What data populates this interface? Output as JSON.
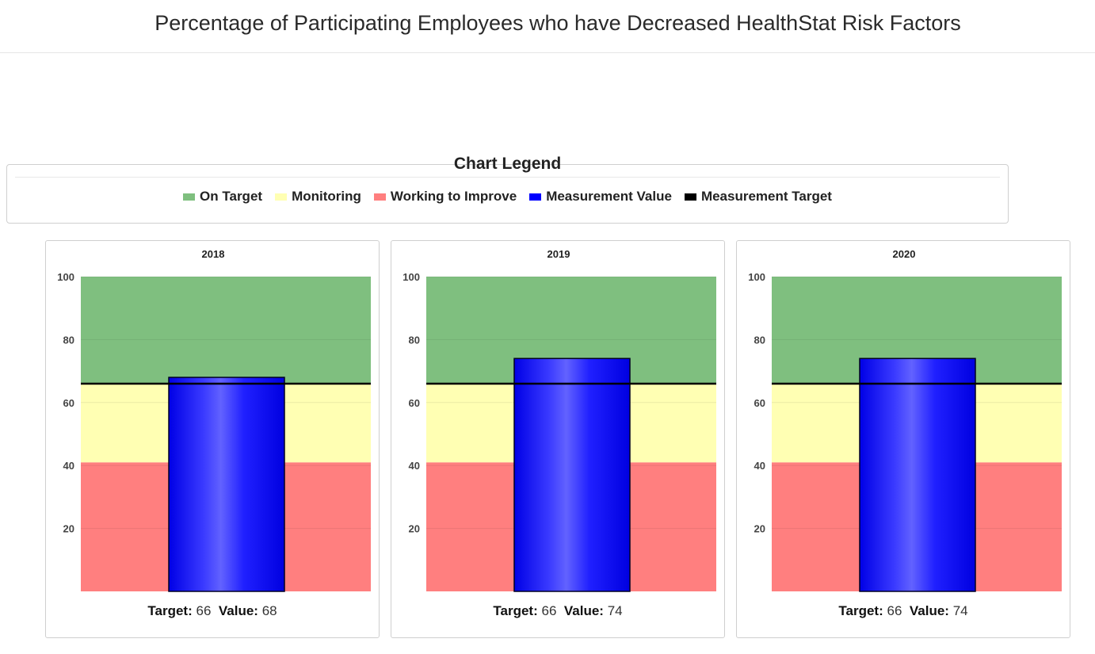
{
  "page": {
    "title": "Percentage of Participating Employees who have Decreased HealthStat Risk Factors"
  },
  "legend": {
    "title": "Chart Legend",
    "items": [
      {
        "label": "On Target",
        "color": "#7fbf7f"
      },
      {
        "label": "Monitoring",
        "color": "#ffffb3"
      },
      {
        "label": "Working to Improve",
        "color": "#ff7f7f"
      },
      {
        "label": "Measurement Value",
        "color": "#0000ff"
      },
      {
        "label": "Measurement Target",
        "color": "#000000"
      }
    ]
  },
  "footer_labels": {
    "target": "Target:",
    "value": "Value:"
  },
  "chart_data": [
    {
      "type": "bar",
      "title": "2018",
      "value": 68,
      "target": 66,
      "ylim": [
        0,
        100
      ],
      "yticks": [
        20,
        40,
        60,
        80,
        100
      ],
      "bands": [
        {
          "name": "Working to Improve",
          "from": 0,
          "to": 41,
          "color": "#ff7f7f"
        },
        {
          "name": "Monitoring",
          "from": 41,
          "to": 66,
          "color": "#ffffb3"
        },
        {
          "name": "On Target",
          "from": 66,
          "to": 100,
          "color": "#7fbf7f"
        }
      ]
    },
    {
      "type": "bar",
      "title": "2019",
      "value": 74,
      "target": 66,
      "ylim": [
        0,
        100
      ],
      "yticks": [
        20,
        40,
        60,
        80,
        100
      ],
      "bands": [
        {
          "name": "Working to Improve",
          "from": 0,
          "to": 41,
          "color": "#ff7f7f"
        },
        {
          "name": "Monitoring",
          "from": 41,
          "to": 66,
          "color": "#ffffb3"
        },
        {
          "name": "On Target",
          "from": 66,
          "to": 100,
          "color": "#7fbf7f"
        }
      ]
    },
    {
      "type": "bar",
      "title": "2020",
      "value": 74,
      "target": 66,
      "ylim": [
        0,
        100
      ],
      "yticks": [
        20,
        40,
        60,
        80,
        100
      ],
      "bands": [
        {
          "name": "Working to Improve",
          "from": 0,
          "to": 41,
          "color": "#ff7f7f"
        },
        {
          "name": "Monitoring",
          "from": 41,
          "to": 66,
          "color": "#ffffb3"
        },
        {
          "name": "On Target",
          "from": 66,
          "to": 100,
          "color": "#7fbf7f"
        }
      ]
    }
  ]
}
